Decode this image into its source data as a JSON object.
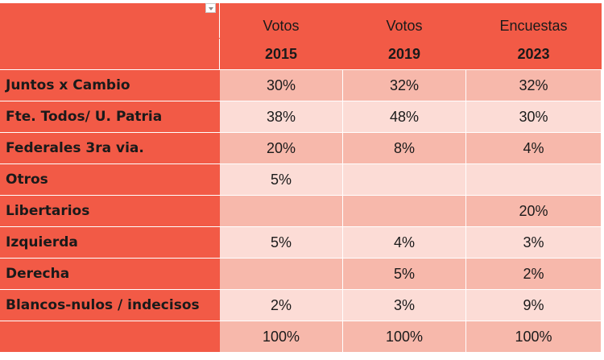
{
  "header": {
    "columns": [
      {
        "top": "Votos",
        "bottom": "2015"
      },
      {
        "top": "Votos",
        "bottom": "2019"
      },
      {
        "top": "Encuestas",
        "bottom": "2023"
      }
    ]
  },
  "rows": [
    {
      "label": "Juntos x Cambio",
      "values": [
        "30%",
        "32%",
        "32%"
      ]
    },
    {
      "label": "Fte. Todos/ U. Patria",
      "values": [
        "38%",
        "48%",
        "30%"
      ]
    },
    {
      "label": "Federales 3ra via.",
      "values": [
        "20%",
        "8%",
        "4%"
      ]
    },
    {
      "label": "Otros",
      "values": [
        "5%",
        "",
        ""
      ]
    },
    {
      "label": "Libertarios",
      "values": [
        "",
        "",
        "20%"
      ]
    },
    {
      "label": "Izquierda",
      "values": [
        "5%",
        "4%",
        "3%"
      ]
    },
    {
      "label": "Derecha",
      "values": [
        "",
        "5%",
        "2%"
      ]
    },
    {
      "label": "Blancos-nulos / indecisos",
      "values": [
        "2%",
        "3%",
        "9%"
      ]
    },
    {
      "label": "",
      "values": [
        "100%",
        "100%",
        "100%"
      ]
    }
  ],
  "colors": {
    "header": "#f25a46",
    "row_dark": "#f7b8ab",
    "row_light": "#fcdcd6"
  },
  "icons": {
    "filter": "filter-dropdown-icon"
  }
}
